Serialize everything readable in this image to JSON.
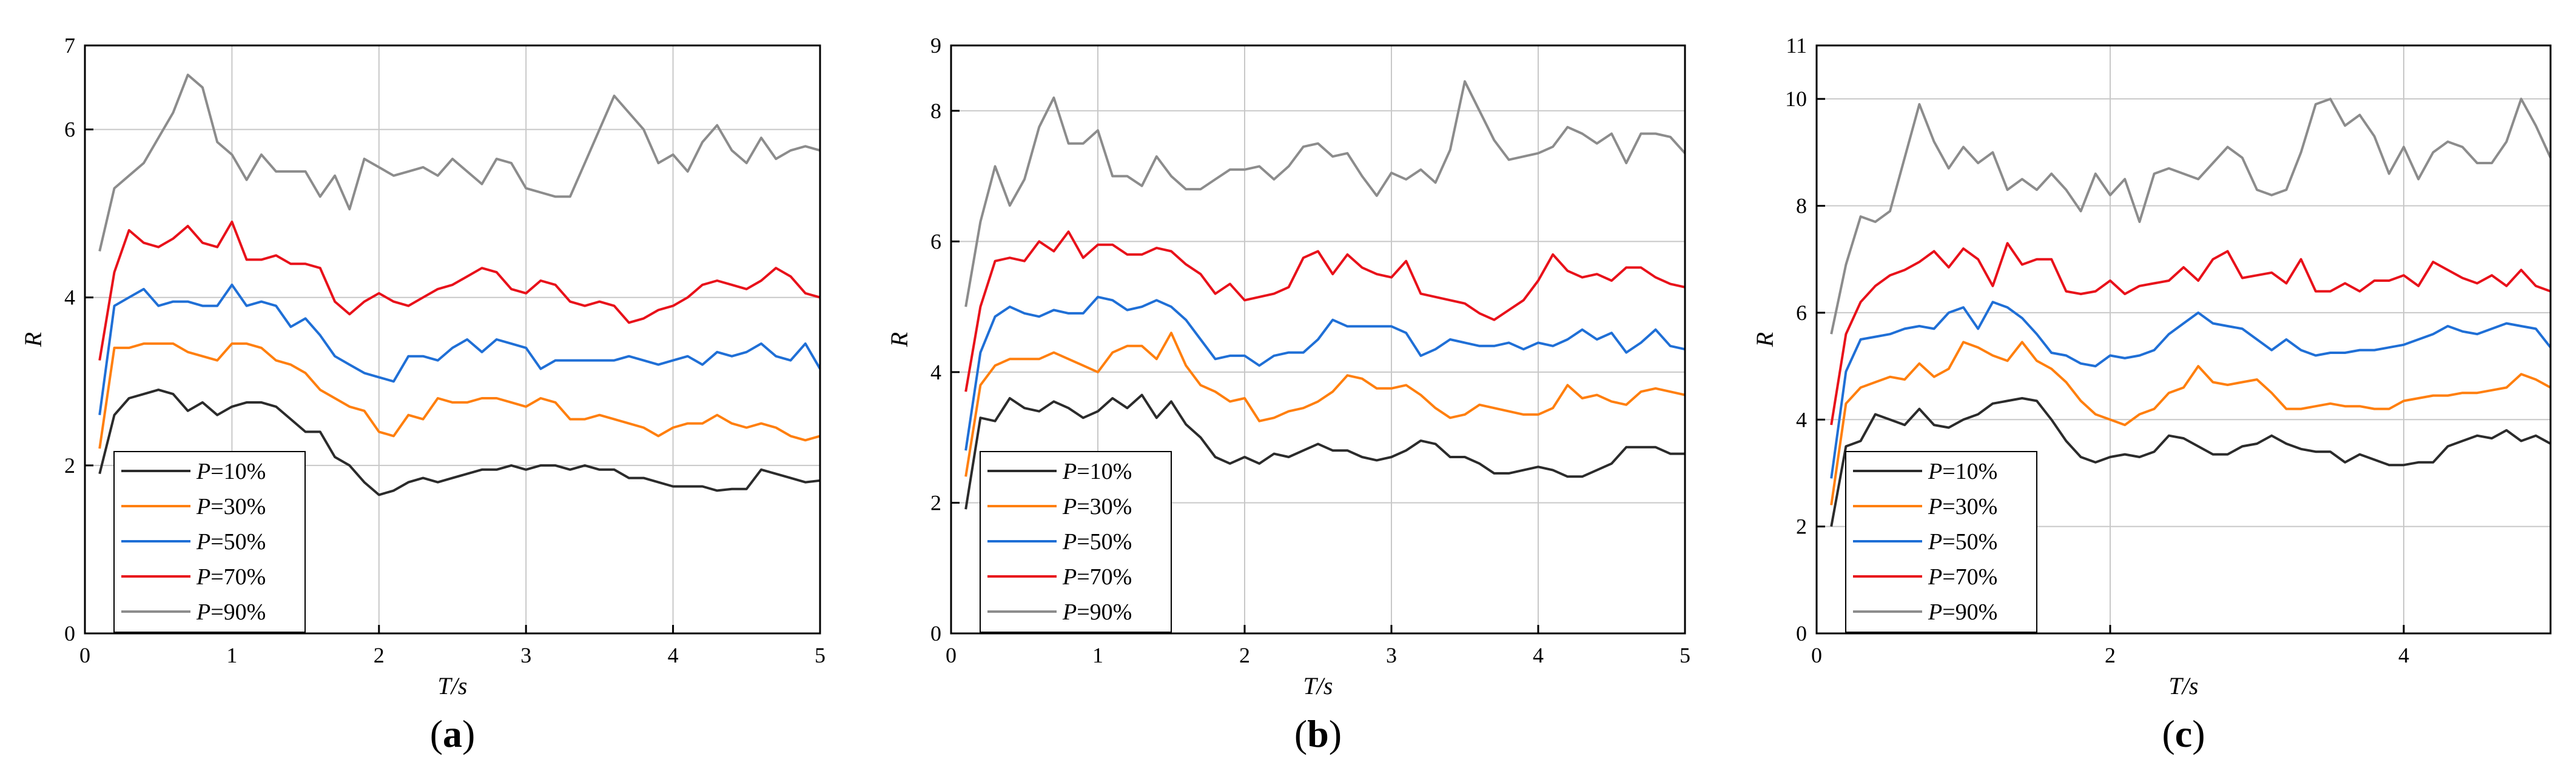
{
  "figure": {
    "colors": {
      "P10": "#2b2b2b",
      "P30": "#ff7f0e",
      "P50": "#1f6fd6",
      "P70": "#e8111a",
      "P90": "#8c8c8c"
    }
  },
  "chart_data": [
    {
      "type": "line",
      "panel_label": "a",
      "xlabel": "T/s",
      "ylabel": "R",
      "xlim": [
        0,
        5
      ],
      "ylim": [
        0,
        7
      ],
      "xticks": [
        0,
        1,
        2,
        3,
        4,
        5
      ],
      "yticks": [
        0,
        2,
        4,
        6,
        7
      ],
      "ytick_labels": [
        "0",
        "2",
        "4",
        "6",
        "7"
      ],
      "x": [
        0.1,
        0.2,
        0.3,
        0.4,
        0.5,
        0.6,
        0.7,
        0.8,
        0.9,
        1.0,
        1.1,
        1.2,
        1.3,
        1.4,
        1.5,
        1.6,
        1.7,
        1.8,
        1.9,
        2.0,
        2.1,
        2.2,
        2.3,
        2.4,
        2.5,
        2.6,
        2.7,
        2.8,
        2.9,
        3.0,
        3.1,
        3.2,
        3.3,
        3.4,
        3.5,
        3.6,
        3.7,
        3.8,
        3.9,
        4.0,
        4.1,
        4.2,
        4.3,
        4.4,
        4.5,
        4.6,
        4.7,
        4.8,
        4.9,
        5.0
      ],
      "legend_position": "bottom-left",
      "grid": true,
      "series": [
        {
          "key": "P10",
          "prefix": "P",
          "suffix": "=10%",
          "values": [
            1.9,
            2.6,
            2.8,
            2.85,
            2.9,
            2.85,
            2.65,
            2.75,
            2.6,
            2.7,
            2.75,
            2.75,
            2.7,
            2.55,
            2.4,
            2.4,
            2.1,
            2.0,
            1.8,
            1.65,
            1.7,
            1.8,
            1.85,
            1.8,
            1.85,
            1.9,
            1.95,
            1.95,
            2.0,
            1.95,
            2.0,
            2.0,
            1.95,
            2.0,
            1.95,
            1.95,
            1.85,
            1.85,
            1.8,
            1.75,
            1.75,
            1.75,
            1.7,
            1.72,
            1.72,
            1.95,
            1.9,
            1.85,
            1.8,
            1.82
          ]
        },
        {
          "key": "P30",
          "prefix": "P",
          "suffix": "=30%",
          "values": [
            2.2,
            3.4,
            3.4,
            3.45,
            3.45,
            3.45,
            3.35,
            3.3,
            3.25,
            3.45,
            3.45,
            3.4,
            3.25,
            3.2,
            3.1,
            2.9,
            2.8,
            2.7,
            2.65,
            2.4,
            2.35,
            2.6,
            2.55,
            2.8,
            2.75,
            2.75,
            2.8,
            2.8,
            2.75,
            2.7,
            2.8,
            2.75,
            2.55,
            2.55,
            2.6,
            2.55,
            2.5,
            2.45,
            2.35,
            2.45,
            2.5,
            2.5,
            2.6,
            2.5,
            2.45,
            2.5,
            2.45,
            2.35,
            2.3,
            2.35
          ]
        },
        {
          "key": "P50",
          "prefix": "P",
          "suffix": "=50%",
          "values": [
            2.6,
            3.9,
            4.0,
            4.1,
            3.9,
            3.95,
            3.95,
            3.9,
            3.9,
            4.15,
            3.9,
            3.95,
            3.9,
            3.65,
            3.75,
            3.55,
            3.3,
            3.2,
            3.1,
            3.05,
            3.0,
            3.3,
            3.3,
            3.25,
            3.4,
            3.5,
            3.35,
            3.5,
            3.45,
            3.4,
            3.15,
            3.25,
            3.25,
            3.25,
            3.25,
            3.25,
            3.3,
            3.25,
            3.2,
            3.25,
            3.3,
            3.2,
            3.35,
            3.3,
            3.35,
            3.45,
            3.3,
            3.25,
            3.45,
            3.15
          ]
        },
        {
          "key": "P70",
          "prefix": "P",
          "suffix": "=70%",
          "values": [
            3.25,
            4.3,
            4.8,
            4.65,
            4.6,
            4.7,
            4.85,
            4.65,
            4.6,
            4.9,
            4.45,
            4.45,
            4.5,
            4.4,
            4.4,
            4.35,
            3.95,
            3.8,
            3.95,
            4.05,
            3.95,
            3.9,
            4.0,
            4.1,
            4.15,
            4.25,
            4.35,
            4.3,
            4.1,
            4.05,
            4.2,
            4.15,
            3.95,
            3.9,
            3.95,
            3.9,
            3.7,
            3.75,
            3.85,
            3.9,
            4.0,
            4.15,
            4.2,
            4.15,
            4.1,
            4.2,
            4.35,
            4.25,
            4.05,
            4.0
          ]
        },
        {
          "key": "P90",
          "prefix": "P",
          "suffix": "=90%",
          "values": [
            4.55,
            5.3,
            5.45,
            5.6,
            5.9,
            6.2,
            6.65,
            6.5,
            5.85,
            5.7,
            5.4,
            5.7,
            5.5,
            5.5,
            5.5,
            5.2,
            5.45,
            5.05,
            5.65,
            5.55,
            5.45,
            5.5,
            5.55,
            5.45,
            5.65,
            5.5,
            5.35,
            5.65,
            5.6,
            5.3,
            5.25,
            5.2,
            5.2,
            5.6,
            6.0,
            6.4,
            6.2,
            6.0,
            5.6,
            5.7,
            5.5,
            5.85,
            6.05,
            5.75,
            5.6,
            5.9,
            5.65,
            5.75,
            5.8,
            5.75
          ]
        }
      ]
    },
    {
      "type": "line",
      "panel_label": "b",
      "xlabel": "T/s",
      "ylabel": "R",
      "xlim": [
        0,
        5
      ],
      "ylim": [
        0,
        9
      ],
      "xticks": [
        0,
        1,
        2,
        3,
        4,
        5
      ],
      "yticks": [
        0,
        2,
        4,
        6,
        8,
        9
      ],
      "ytick_labels": [
        "0",
        "2",
        "4",
        "6",
        "8",
        "9"
      ],
      "x": [
        0.1,
        0.2,
        0.3,
        0.4,
        0.5,
        0.6,
        0.7,
        0.8,
        0.9,
        1.0,
        1.1,
        1.2,
        1.3,
        1.4,
        1.5,
        1.6,
        1.7,
        1.8,
        1.9,
        2.0,
        2.1,
        2.2,
        2.3,
        2.4,
        2.5,
        2.6,
        2.7,
        2.8,
        2.9,
        3.0,
        3.1,
        3.2,
        3.3,
        3.4,
        3.5,
        3.6,
        3.7,
        3.8,
        3.9,
        4.0,
        4.1,
        4.2,
        4.3,
        4.4,
        4.5,
        4.6,
        4.7,
        4.8,
        4.9,
        5.0
      ],
      "legend_position": "bottom-left",
      "grid": true,
      "series": [
        {
          "key": "P10",
          "prefix": "P",
          "suffix": "=10%",
          "values": [
            1.9,
            3.3,
            3.25,
            3.6,
            3.45,
            3.4,
            3.55,
            3.45,
            3.3,
            3.4,
            3.6,
            3.45,
            3.65,
            3.3,
            3.55,
            3.2,
            3.0,
            2.7,
            2.6,
            2.7,
            2.6,
            2.75,
            2.7,
            2.8,
            2.9,
            2.8,
            2.8,
            2.7,
            2.65,
            2.7,
            2.8,
            2.95,
            2.9,
            2.7,
            2.7,
            2.6,
            2.45,
            2.45,
            2.5,
            2.55,
            2.5,
            2.4,
            2.4,
            2.5,
            2.6,
            2.85,
            2.85,
            2.85,
            2.75,
            2.75
          ]
        },
        {
          "key": "P30",
          "prefix": "P",
          "suffix": "=30%",
          "values": [
            2.4,
            3.8,
            4.1,
            4.2,
            4.2,
            4.2,
            4.3,
            4.2,
            4.1,
            4.0,
            4.3,
            4.4,
            4.4,
            4.2,
            4.6,
            4.1,
            3.8,
            3.7,
            3.55,
            3.6,
            3.25,
            3.3,
            3.4,
            3.45,
            3.55,
            3.7,
            3.95,
            3.9,
            3.75,
            3.75,
            3.8,
            3.65,
            3.45,
            3.3,
            3.35,
            3.5,
            3.45,
            3.4,
            3.35,
            3.35,
            3.45,
            3.8,
            3.6,
            3.65,
            3.55,
            3.5,
            3.7,
            3.75,
            3.7,
            3.65
          ]
        },
        {
          "key": "P50",
          "prefix": "P",
          "suffix": "=50%",
          "values": [
            2.8,
            4.3,
            4.85,
            5.0,
            4.9,
            4.85,
            4.95,
            4.9,
            4.9,
            5.15,
            5.1,
            4.95,
            5.0,
            5.1,
            5.0,
            4.8,
            4.5,
            4.2,
            4.25,
            4.25,
            4.1,
            4.25,
            4.3,
            4.3,
            4.5,
            4.8,
            4.7,
            4.7,
            4.7,
            4.7,
            4.6,
            4.25,
            4.35,
            4.5,
            4.45,
            4.4,
            4.4,
            4.45,
            4.35,
            4.45,
            4.4,
            4.5,
            4.65,
            4.5,
            4.6,
            4.3,
            4.45,
            4.65,
            4.4,
            4.35
          ]
        },
        {
          "key": "P70",
          "prefix": "P",
          "suffix": "=70%",
          "values": [
            3.7,
            5.0,
            5.7,
            5.75,
            5.7,
            6.0,
            5.85,
            6.15,
            5.75,
            5.95,
            5.95,
            5.8,
            5.8,
            5.9,
            5.85,
            5.65,
            5.5,
            5.2,
            5.35,
            5.1,
            5.15,
            5.2,
            5.3,
            5.75,
            5.85,
            5.5,
            5.8,
            5.6,
            5.5,
            5.45,
            5.7,
            5.2,
            5.15,
            5.1,
            5.05,
            4.9,
            4.8,
            4.95,
            5.1,
            5.4,
            5.8,
            5.55,
            5.45,
            5.5,
            5.4,
            5.6,
            5.6,
            5.45,
            5.35,
            5.3
          ]
        },
        {
          "key": "P90",
          "prefix": "P",
          "suffix": "=90%",
          "values": [
            5.0,
            6.3,
            7.15,
            6.55,
            6.95,
            7.75,
            8.2,
            7.5,
            7.5,
            7.7,
            7.0,
            7.0,
            6.85,
            7.3,
            7.0,
            6.8,
            6.8,
            6.95,
            7.1,
            7.1,
            7.15,
            6.95,
            7.15,
            7.45,
            7.5,
            7.3,
            7.35,
            7.0,
            6.7,
            7.05,
            6.95,
            7.1,
            6.9,
            7.4,
            8.45,
            8.0,
            7.55,
            7.25,
            7.3,
            7.35,
            7.45,
            7.75,
            7.65,
            7.5,
            7.65,
            7.2,
            7.65,
            7.65,
            7.6,
            7.35
          ]
        }
      ]
    },
    {
      "type": "line",
      "panel_label": "c",
      "xlabel": "T/s",
      "ylabel": "R",
      "xlim": [
        0,
        5
      ],
      "ylim": [
        0,
        11
      ],
      "xticks": [
        0,
        2,
        4
      ],
      "yticks": [
        0,
        2,
        4,
        6,
        8,
        10,
        11
      ],
      "ytick_labels": [
        "0",
        "2",
        "4",
        "6",
        "8",
        "10",
        "11"
      ],
      "x": [
        0.1,
        0.2,
        0.3,
        0.4,
        0.5,
        0.6,
        0.7,
        0.8,
        0.9,
        1.0,
        1.1,
        1.2,
        1.3,
        1.4,
        1.5,
        1.6,
        1.7,
        1.8,
        1.9,
        2.0,
        2.1,
        2.2,
        2.3,
        2.4,
        2.5,
        2.6,
        2.7,
        2.8,
        2.9,
        3.0,
        3.1,
        3.2,
        3.3,
        3.4,
        3.5,
        3.6,
        3.7,
        3.8,
        3.9,
        4.0,
        4.1,
        4.2,
        4.3,
        4.4,
        4.5,
        4.6,
        4.7,
        4.8,
        4.9,
        5.0
      ],
      "legend_position": "bottom-left",
      "grid": true,
      "series": [
        {
          "key": "P10",
          "prefix": "P",
          "suffix": "=10%",
          "values": [
            2.0,
            3.5,
            3.6,
            4.1,
            4.0,
            3.9,
            4.2,
            3.9,
            3.85,
            4.0,
            4.1,
            4.3,
            4.35,
            4.4,
            4.35,
            4.0,
            3.6,
            3.3,
            3.2,
            3.3,
            3.35,
            3.3,
            3.4,
            3.7,
            3.65,
            3.5,
            3.35,
            3.35,
            3.5,
            3.55,
            3.7,
            3.55,
            3.45,
            3.4,
            3.4,
            3.2,
            3.35,
            3.25,
            3.15,
            3.15,
            3.2,
            3.2,
            3.5,
            3.6,
            3.7,
            3.65,
            3.8,
            3.6,
            3.7,
            3.55
          ]
        },
        {
          "key": "P30",
          "prefix": "P",
          "suffix": "=30%",
          "values": [
            2.4,
            4.3,
            4.6,
            4.7,
            4.8,
            4.75,
            5.05,
            4.8,
            4.95,
            5.45,
            5.35,
            5.2,
            5.1,
            5.45,
            5.1,
            4.95,
            4.7,
            4.35,
            4.1,
            4.0,
            3.9,
            4.1,
            4.2,
            4.5,
            4.6,
            5.0,
            4.7,
            4.65,
            4.7,
            4.75,
            4.5,
            4.2,
            4.2,
            4.25,
            4.3,
            4.25,
            4.25,
            4.2,
            4.2,
            4.35,
            4.4,
            4.45,
            4.45,
            4.5,
            4.5,
            4.55,
            4.6,
            4.85,
            4.75,
            4.6
          ]
        },
        {
          "key": "P50",
          "prefix": "P",
          "suffix": "=50%",
          "values": [
            2.9,
            4.9,
            5.5,
            5.55,
            5.6,
            5.7,
            5.75,
            5.7,
            6.0,
            6.1,
            5.7,
            6.2,
            6.1,
            5.9,
            5.6,
            5.25,
            5.2,
            5.05,
            5.0,
            5.2,
            5.15,
            5.2,
            5.3,
            5.6,
            5.8,
            6.0,
            5.8,
            5.75,
            5.7,
            5.5,
            5.3,
            5.5,
            5.3,
            5.2,
            5.25,
            5.25,
            5.3,
            5.3,
            5.35,
            5.4,
            5.5,
            5.6,
            5.75,
            5.65,
            5.6,
            5.7,
            5.8,
            5.75,
            5.7,
            5.35
          ]
        },
        {
          "key": "P70",
          "prefix": "P",
          "suffix": "=70%",
          "values": [
            3.9,
            5.6,
            6.2,
            6.5,
            6.7,
            6.8,
            6.95,
            7.15,
            6.85,
            7.2,
            7.0,
            6.5,
            7.3,
            6.9,
            7.0,
            7.0,
            6.4,
            6.35,
            6.4,
            6.6,
            6.35,
            6.5,
            6.55,
            6.6,
            6.85,
            6.6,
            7.0,
            7.15,
            6.65,
            6.7,
            6.75,
            6.55,
            7.0,
            6.4,
            6.4,
            6.55,
            6.4,
            6.6,
            6.6,
            6.7,
            6.5,
            6.95,
            6.8,
            6.65,
            6.55,
            6.7,
            6.5,
            6.8,
            6.5,
            6.4
          ]
        },
        {
          "key": "P90",
          "prefix": "P",
          "suffix": "=90%",
          "values": [
            5.6,
            6.9,
            7.8,
            7.7,
            7.9,
            8.9,
            9.9,
            9.2,
            8.7,
            9.1,
            8.8,
            9.0,
            8.3,
            8.5,
            8.3,
            8.6,
            8.3,
            7.9,
            8.6,
            8.2,
            8.5,
            7.7,
            8.6,
            8.7,
            8.6,
            8.5,
            8.8,
            9.1,
            8.9,
            8.3,
            8.2,
            8.3,
            9.0,
            9.9,
            10.0,
            9.5,
            9.7,
            9.3,
            8.6,
            9.1,
            8.5,
            9.0,
            9.2,
            9.1,
            8.8,
            8.8,
            9.2,
            10.0,
            9.5,
            8.9
          ]
        }
      ]
    }
  ]
}
